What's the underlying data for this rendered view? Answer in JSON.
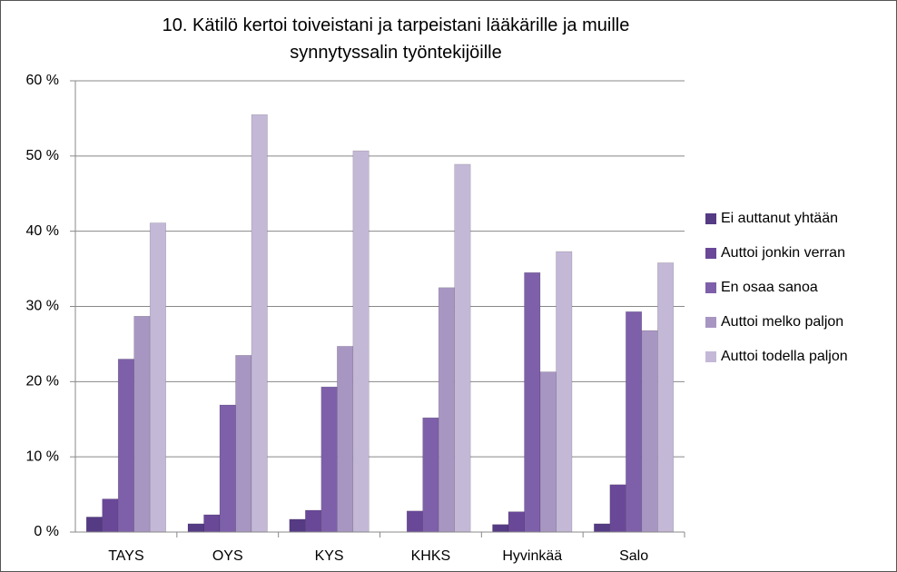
{
  "chart_data": {
    "type": "bar",
    "title": "10. Kätilö kertoi toiveistani ja tarpeistani lääkärille ja muille synnytyssalin työntekijöille",
    "categories": [
      "TAYS",
      "OYS",
      "KYS",
      "KHKS",
      "Hyvinkää",
      "Salo"
    ],
    "series": [
      {
        "name": "Ei auttanut yhtään",
        "color": "#553a84",
        "values": [
          2.0,
          1.1,
          1.7,
          0,
          1.0,
          1.1
        ]
      },
      {
        "name": "Auttoi jonkin verran",
        "color": "#6a4898",
        "values": [
          4.4,
          2.3,
          2.9,
          2.8,
          2.7,
          6.3
        ]
      },
      {
        "name": "En osaa sanoa",
        "color": "#7e60aa",
        "values": [
          23.0,
          16.9,
          19.3,
          15.2,
          34.5,
          29.3
        ]
      },
      {
        "name": "Auttoi melko paljon",
        "color": "#a896c2",
        "values": [
          28.7,
          23.5,
          24.7,
          32.5,
          21.3,
          26.8
        ]
      },
      {
        "name": "Auttoi todella paljon",
        "color": "#c4b8d7",
        "values": [
          41.1,
          55.5,
          50.7,
          48.9,
          37.3,
          35.8
        ]
      }
    ],
    "ylim": [
      0,
      60
    ],
    "yticks": [
      {
        "value": 0,
        "label": "0 %"
      },
      {
        "value": 10,
        "label": "10 %"
      },
      {
        "value": 20,
        "label": "20 %"
      },
      {
        "value": 30,
        "label": "30 %"
      },
      {
        "value": 40,
        "label": "40 %"
      },
      {
        "value": 50,
        "label": "50 %"
      },
      {
        "value": 60,
        "label": "60 %"
      }
    ],
    "grid": true,
    "legend": "right"
  }
}
